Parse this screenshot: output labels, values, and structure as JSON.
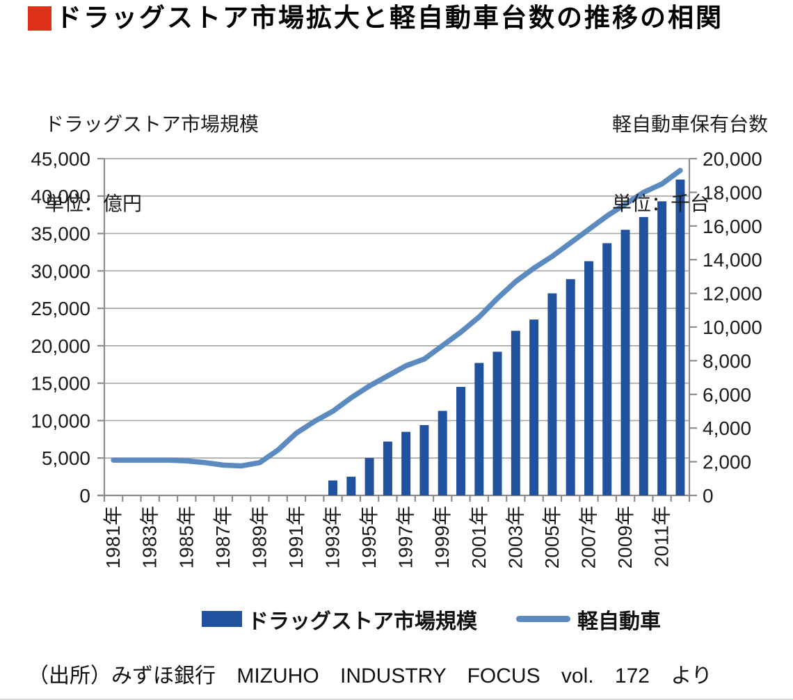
{
  "title": {
    "text": "ドラッグストア市場拡大と軽自動車台数の推移の相関"
  },
  "axis_captions": {
    "left_line1": "ドラッグストア市場規模",
    "left_line2": "単位：億円",
    "right_line1": "軽自動車保有台数",
    "right_line2": "単位：千台"
  },
  "legend": {
    "items": [
      {
        "label": "ドラッグストア市場規模",
        "swatch": "bar"
      },
      {
        "label": "軽自動車",
        "swatch": "line"
      }
    ]
  },
  "source": "（出所）みずほ銀行 MIZUHO INDUSTRY FOCUS vol. 172 より",
  "colors": {
    "bar": "#2152A0",
    "line": "#5B8AC0",
    "accent_red": "#E0301A",
    "grid": "#A6A6A6",
    "axis": "#8C8C8C"
  },
  "chart_data": {
    "type": "combo_bar_line",
    "title": "ドラッグストア市場拡大と軽自動車台数の推移の相関",
    "x": [
      1981,
      1982,
      1983,
      1984,
      1985,
      1986,
      1987,
      1988,
      1989,
      1990,
      1991,
      1992,
      1993,
      1994,
      1995,
      1996,
      1997,
      1998,
      1999,
      2000,
      2001,
      2002,
      2003,
      2004,
      2005,
      2006,
      2007,
      2008,
      2009,
      2010,
      2011,
      2012
    ],
    "x_tick_labels": [
      "1981年",
      "1983年",
      "1985年",
      "1987年",
      "1989年",
      "1991年",
      "1993年",
      "1995年",
      "1997年",
      "1999年",
      "2001年",
      "2003年",
      "2005年",
      "2007年",
      "2009年",
      "2011年"
    ],
    "x_tick_every": 2,
    "series": [
      {
        "name": "ドラッグストア市場規模",
        "type": "bar",
        "axis": "left",
        "unit": "億円",
        "color": "#2152A0",
        "values": [
          null,
          null,
          null,
          null,
          null,
          null,
          null,
          null,
          null,
          null,
          null,
          null,
          2000,
          2500,
          5000,
          7200,
          8500,
          9400,
          11300,
          14500,
          17700,
          19200,
          22000,
          23500,
          27000,
          28900,
          31300,
          33700,
          35500,
          37200,
          39300,
          42200
        ]
      },
      {
        "name": "軽自動車",
        "type": "line",
        "axis": "right",
        "unit": "千台",
        "color": "#5B8AC0",
        "values": [
          2100,
          2100,
          2100,
          2100,
          2050,
          1950,
          1800,
          1750,
          1950,
          2700,
          3700,
          4400,
          5000,
          5800,
          6500,
          7100,
          7700,
          8100,
          8900,
          9700,
          10600,
          11700,
          12700,
          13500,
          14200,
          15000,
          15800,
          16600,
          17300,
          18000,
          18500,
          19300
        ]
      }
    ],
    "left_axis": {
      "min": 0,
      "max": 45000,
      "step": 5000,
      "tick_labels": [
        "0",
        "5,000",
        "10,000",
        "15,000",
        "20,000",
        "25,000",
        "30,000",
        "35,000",
        "40,000",
        "45,000"
      ]
    },
    "right_axis": {
      "min": 0,
      "max": 20000,
      "step": 2000,
      "tick_labels": [
        "0",
        "2,000",
        "4,000",
        "6,000",
        "8,000",
        "10,000",
        "12,000",
        "14,000",
        "16,000",
        "18,000",
        "20,000"
      ]
    },
    "grid": true,
    "legend_position": "bottom"
  }
}
